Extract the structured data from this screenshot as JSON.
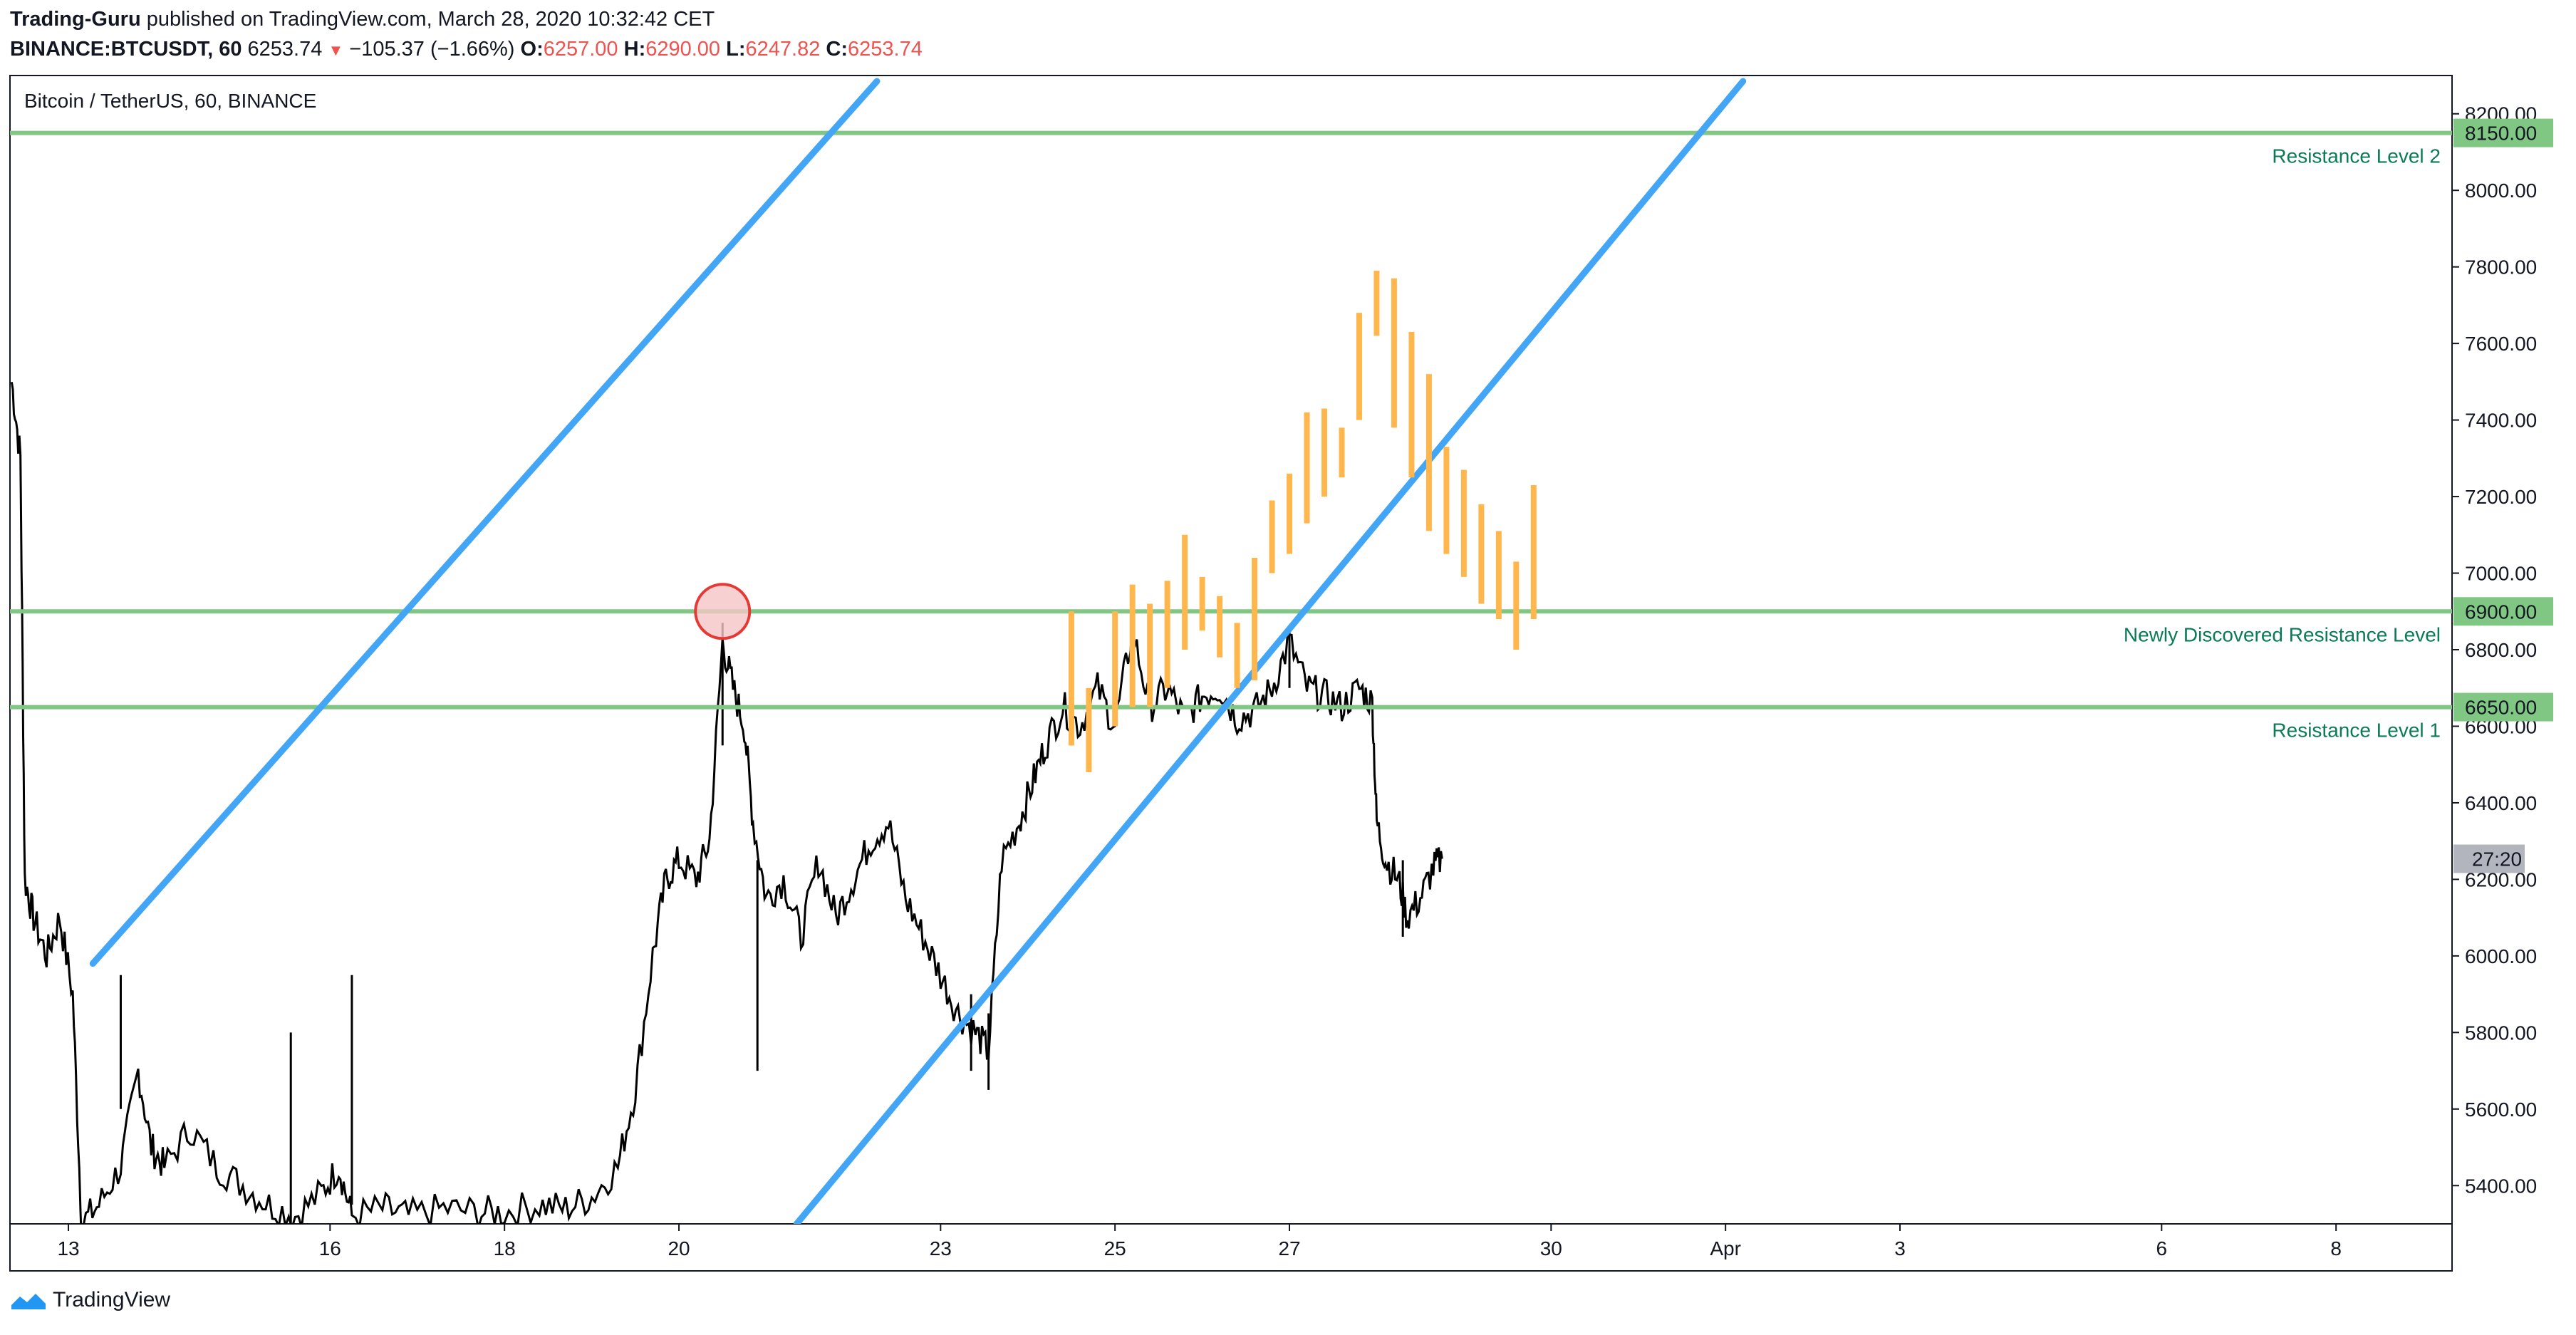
{
  "header": {
    "author": "Trading-Guru",
    "published_text": "published on TradingView.com, March 28, 2020 10:32:42 CET",
    "symbol": "BINANCE:BTCUSDT, 60",
    "last_price": "6253.74",
    "change": "−105.37 (−1.66%)",
    "o_label": "O:",
    "o_value": "6257.00",
    "h_label": "H:",
    "h_value": "6290.00",
    "l_label": "L:",
    "l_value": "6247.82",
    "c_label": "C:",
    "c_value": "6253.74",
    "change_icon": "down-triangle-icon"
  },
  "legend_title": "Bitcoin / TetherUS, 60, BINANCE",
  "footer": {
    "brand": "TradingView",
    "logo_icon": "tradingview-logo-icon"
  },
  "colors": {
    "candle": "#000000",
    "channel": "#42a5f5",
    "level": "#81c784",
    "level_label": "#0b7a57",
    "projection": "#ffb74d",
    "marker_fill": "#f5c6c6",
    "marker_stroke": "#e53935",
    "countdown_bg": "#b2b5be"
  },
  "chart_data": {
    "type": "candlestick",
    "symbol": "BTCUSDT",
    "timeframe": "60",
    "ylim": [
      5300,
      8300
    ],
    "y_ticks": [
      "5400.00",
      "5600.00",
      "5800.00",
      "6000.00",
      "6200.00",
      "6400.00",
      "6600.00",
      "6800.00",
      "7000.00",
      "7200.00",
      "7400.00",
      "7600.00",
      "7800.00",
      "8000.00",
      "8200.00"
    ],
    "x_ticks": [
      "13",
      "16",
      "18",
      "20",
      "23",
      "25",
      "27",
      "30",
      "Apr",
      "3",
      "6",
      "8"
    ],
    "x_tick_days": [
      13,
      16,
      18,
      20,
      23,
      25,
      27,
      30,
      32,
      34,
      37,
      39
    ],
    "x_range_days": [
      12.33,
      40.33
    ],
    "countdown_label": "27:20",
    "countdown_price": 6253.74,
    "price_path": [
      [
        12.35,
        7500
      ],
      [
        12.45,
        7300
      ],
      [
        12.5,
        6200
      ],
      [
        12.6,
        6100
      ],
      [
        12.75,
        6000
      ],
      [
        12.9,
        6100
      ],
      [
        13.05,
        5900
      ],
      [
        13.15,
        5300
      ],
      [
        13.35,
        5350
      ],
      [
        13.6,
        5450
      ],
      [
        13.8,
        5700
      ],
      [
        13.95,
        5500
      ],
      [
        14.1,
        5450
      ],
      [
        14.4,
        5550
      ],
      [
        14.7,
        5450
      ],
      [
        15.0,
        5400
      ],
      [
        15.3,
        5350
      ],
      [
        15.6,
        5320
      ],
      [
        15.9,
        5380
      ],
      [
        16.1,
        5450
      ],
      [
        16.25,
        5320
      ],
      [
        16.6,
        5340
      ],
      [
        16.9,
        5320
      ],
      [
        17.3,
        5340
      ],
      [
        17.7,
        5330
      ],
      [
        18.0,
        5330
      ],
      [
        18.4,
        5350
      ],
      [
        18.7,
        5340
      ],
      [
        19.0,
        5370
      ],
      [
        19.3,
        5450
      ],
      [
        19.5,
        5650
      ],
      [
        19.7,
        6000
      ],
      [
        19.85,
        6200
      ],
      [
        20.0,
        6250
      ],
      [
        20.2,
        6200
      ],
      [
        20.35,
        6300
      ],
      [
        20.5,
        6820
      ],
      [
        20.62,
        6700
      ],
      [
        20.75,
        6600
      ],
      [
        20.85,
        6350
      ],
      [
        21.0,
        6150
      ],
      [
        21.2,
        6200
      ],
      [
        21.4,
        6050
      ],
      [
        21.6,
        6250
      ],
      [
        21.8,
        6100
      ],
      [
        22.0,
        6200
      ],
      [
        22.2,
        6300
      ],
      [
        22.4,
        6350
      ],
      [
        22.6,
        6150
      ],
      [
        22.8,
        6050
      ],
      [
        23.0,
        5950
      ],
      [
        23.2,
        5850
      ],
      [
        23.4,
        5800
      ],
      [
        23.55,
        5750
      ],
      [
        23.7,
        6250
      ],
      [
        23.9,
        6350
      ],
      [
        24.05,
        6450
      ],
      [
        24.2,
        6550
      ],
      [
        24.4,
        6650
      ],
      [
        24.6,
        6600
      ],
      [
        24.8,
        6700
      ],
      [
        25.0,
        6600
      ],
      [
        25.2,
        6850
      ],
      [
        25.4,
        6650
      ],
      [
        25.6,
        6700
      ],
      [
        25.8,
        6620
      ],
      [
        26.0,
        6680
      ],
      [
        26.2,
        6700
      ],
      [
        26.4,
        6620
      ],
      [
        26.6,
        6640
      ],
      [
        26.8,
        6700
      ],
      [
        27.0,
        6820
      ],
      [
        27.2,
        6700
      ],
      [
        27.4,
        6680
      ],
      [
        27.6,
        6650
      ],
      [
        27.8,
        6700
      ],
      [
        27.95,
        6660
      ],
      [
        28.0,
        6350
      ],
      [
        28.1,
        6250
      ],
      [
        28.25,
        6200
      ],
      [
        28.35,
        6100
      ],
      [
        28.5,
        6150
      ],
      [
        28.65,
        6230
      ],
      [
        28.75,
        6253.74
      ]
    ],
    "spikes": [
      [
        13.6,
        5600,
        5950
      ],
      [
        15.55,
        5300,
        5800
      ],
      [
        16.25,
        5350,
        5950
      ],
      [
        20.5,
        6550,
        6870
      ],
      [
        20.9,
        5700,
        6250
      ],
      [
        23.35,
        5700,
        5900
      ],
      [
        23.55,
        5650,
        5850
      ],
      [
        24.5,
        6550,
        6850
      ],
      [
        25.4,
        6650,
        6900
      ],
      [
        27.0,
        6700,
        6850
      ],
      [
        28.3,
        6050,
        6250
      ]
    ],
    "horizontal_levels": [
      {
        "price": 8150,
        "label": "8150.00",
        "name": "Resistance Level 2"
      },
      {
        "price": 6900,
        "label": "6900.00",
        "name": "Newly Discovered Resistance Level"
      },
      {
        "price": 6650,
        "label": "6650.00",
        "name": "Resistance Level 1"
      }
    ],
    "channel_lines": [
      {
        "points": [
          [
            13.28,
            5980
          ],
          [
            22.27,
            8285
          ]
        ]
      },
      {
        "points": [
          [
            21.35,
            5300
          ],
          [
            32.2,
            8285
          ]
        ]
      }
    ],
    "marker_circle": {
      "center": [
        20.5,
        6900
      ]
    },
    "projection_bars": [
      [
        24.5,
        6550,
        6900
      ],
      [
        24.7,
        6480,
        6700
      ],
      [
        25.0,
        6600,
        6900
      ],
      [
        25.2,
        6650,
        6970
      ],
      [
        25.4,
        6650,
        6920
      ],
      [
        25.6,
        6700,
        6980
      ],
      [
        25.8,
        6800,
        7100
      ],
      [
        26.0,
        6850,
        6990
      ],
      [
        26.2,
        6780,
        6940
      ],
      [
        26.4,
        6700,
        6870
      ],
      [
        26.6,
        6720,
        7040
      ],
      [
        26.8,
        7000,
        7190
      ],
      [
        27.0,
        7050,
        7260
      ],
      [
        27.2,
        7130,
        7420
      ],
      [
        27.4,
        7200,
        7430
      ],
      [
        27.6,
        7250,
        7380
      ],
      [
        27.8,
        7400,
        7680
      ],
      [
        28.0,
        7620,
        7790
      ],
      [
        28.2,
        7380,
        7770
      ],
      [
        28.4,
        7250,
        7630
      ],
      [
        28.6,
        7110,
        7520
      ],
      [
        28.8,
        7050,
        7330
      ],
      [
        29.0,
        6990,
        7270
      ],
      [
        29.2,
        6920,
        7180
      ],
      [
        29.4,
        6880,
        7110
      ],
      [
        29.6,
        6800,
        7030
      ],
      [
        29.8,
        6880,
        7230
      ]
    ]
  }
}
